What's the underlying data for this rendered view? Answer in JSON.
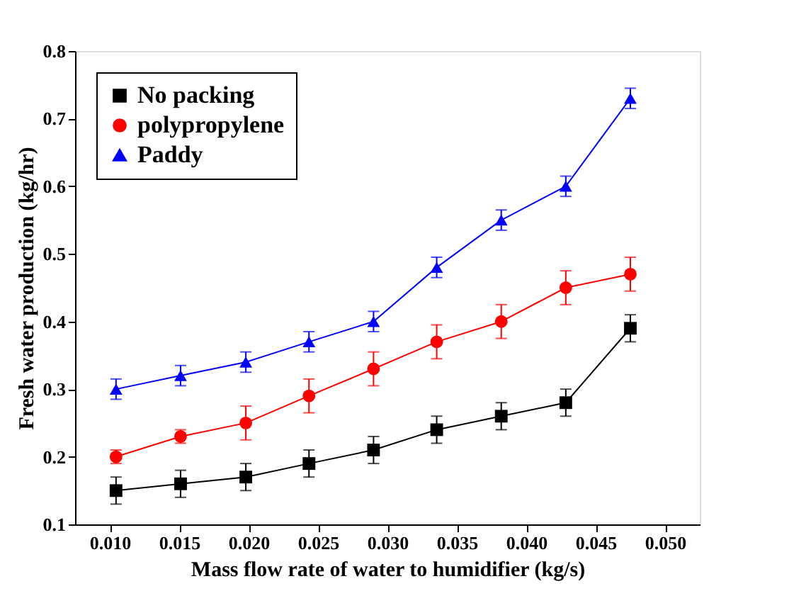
{
  "chart_data": {
    "type": "line",
    "xlabel": "Mass flow rate of water to humidifier (kg/s)",
    "ylabel": "Fresh water production (kg/hr)",
    "x": [
      0.01045,
      0.0151,
      0.0198,
      0.02435,
      0.029,
      0.03355,
      0.0382,
      0.04285,
      0.0475
    ],
    "series": [
      {
        "name": "No packing",
        "color": "#000000",
        "marker": "square",
        "values": [
          0.15,
          0.16,
          0.17,
          0.19,
          0.21,
          0.24,
          0.26,
          0.28,
          0.39
        ],
        "errors": [
          0.02,
          0.02,
          0.02,
          0.02,
          0.02,
          0.02,
          0.02,
          0.02,
          0.02
        ]
      },
      {
        "name": "polypropylene",
        "color": "#ff0000",
        "marker": "circle",
        "values": [
          0.2,
          0.23,
          0.25,
          0.29,
          0.33,
          0.37,
          0.4,
          0.45,
          0.47
        ],
        "errors": [
          0.01,
          0.01,
          0.025,
          0.025,
          0.025,
          0.025,
          0.025,
          0.025,
          0.025
        ]
      },
      {
        "name": "Paddy",
        "color": "#0000ff",
        "marker": "triangle",
        "values": [
          0.3,
          0.32,
          0.34,
          0.37,
          0.4,
          0.48,
          0.55,
          0.6,
          0.73
        ],
        "errors": [
          0.015,
          0.015,
          0.015,
          0.015,
          0.015,
          0.015,
          0.015,
          0.015,
          0.015
        ]
      }
    ],
    "xlim": [
      0.0075,
      0.0525
    ],
    "xticks": [
      {
        "value": 0.01,
        "label": "0.010"
      },
      {
        "value": 0.015,
        "label": "0.015"
      },
      {
        "value": 0.02,
        "label": "0.020"
      },
      {
        "value": 0.025,
        "label": "0.025"
      },
      {
        "value": 0.03,
        "label": "0.030"
      },
      {
        "value": 0.035,
        "label": "0.035"
      },
      {
        "value": 0.04,
        "label": "0.040"
      },
      {
        "value": 0.045,
        "label": "0.045"
      },
      {
        "value": 0.05,
        "label": "0.050"
      }
    ],
    "ylim": [
      0.1,
      0.8
    ],
    "yticks": [
      0.1,
      0.2,
      0.3,
      0.4,
      0.5,
      0.6,
      0.7,
      0.8
    ],
    "grid": false,
    "legend": "top left",
    "line_style": "solid"
  }
}
